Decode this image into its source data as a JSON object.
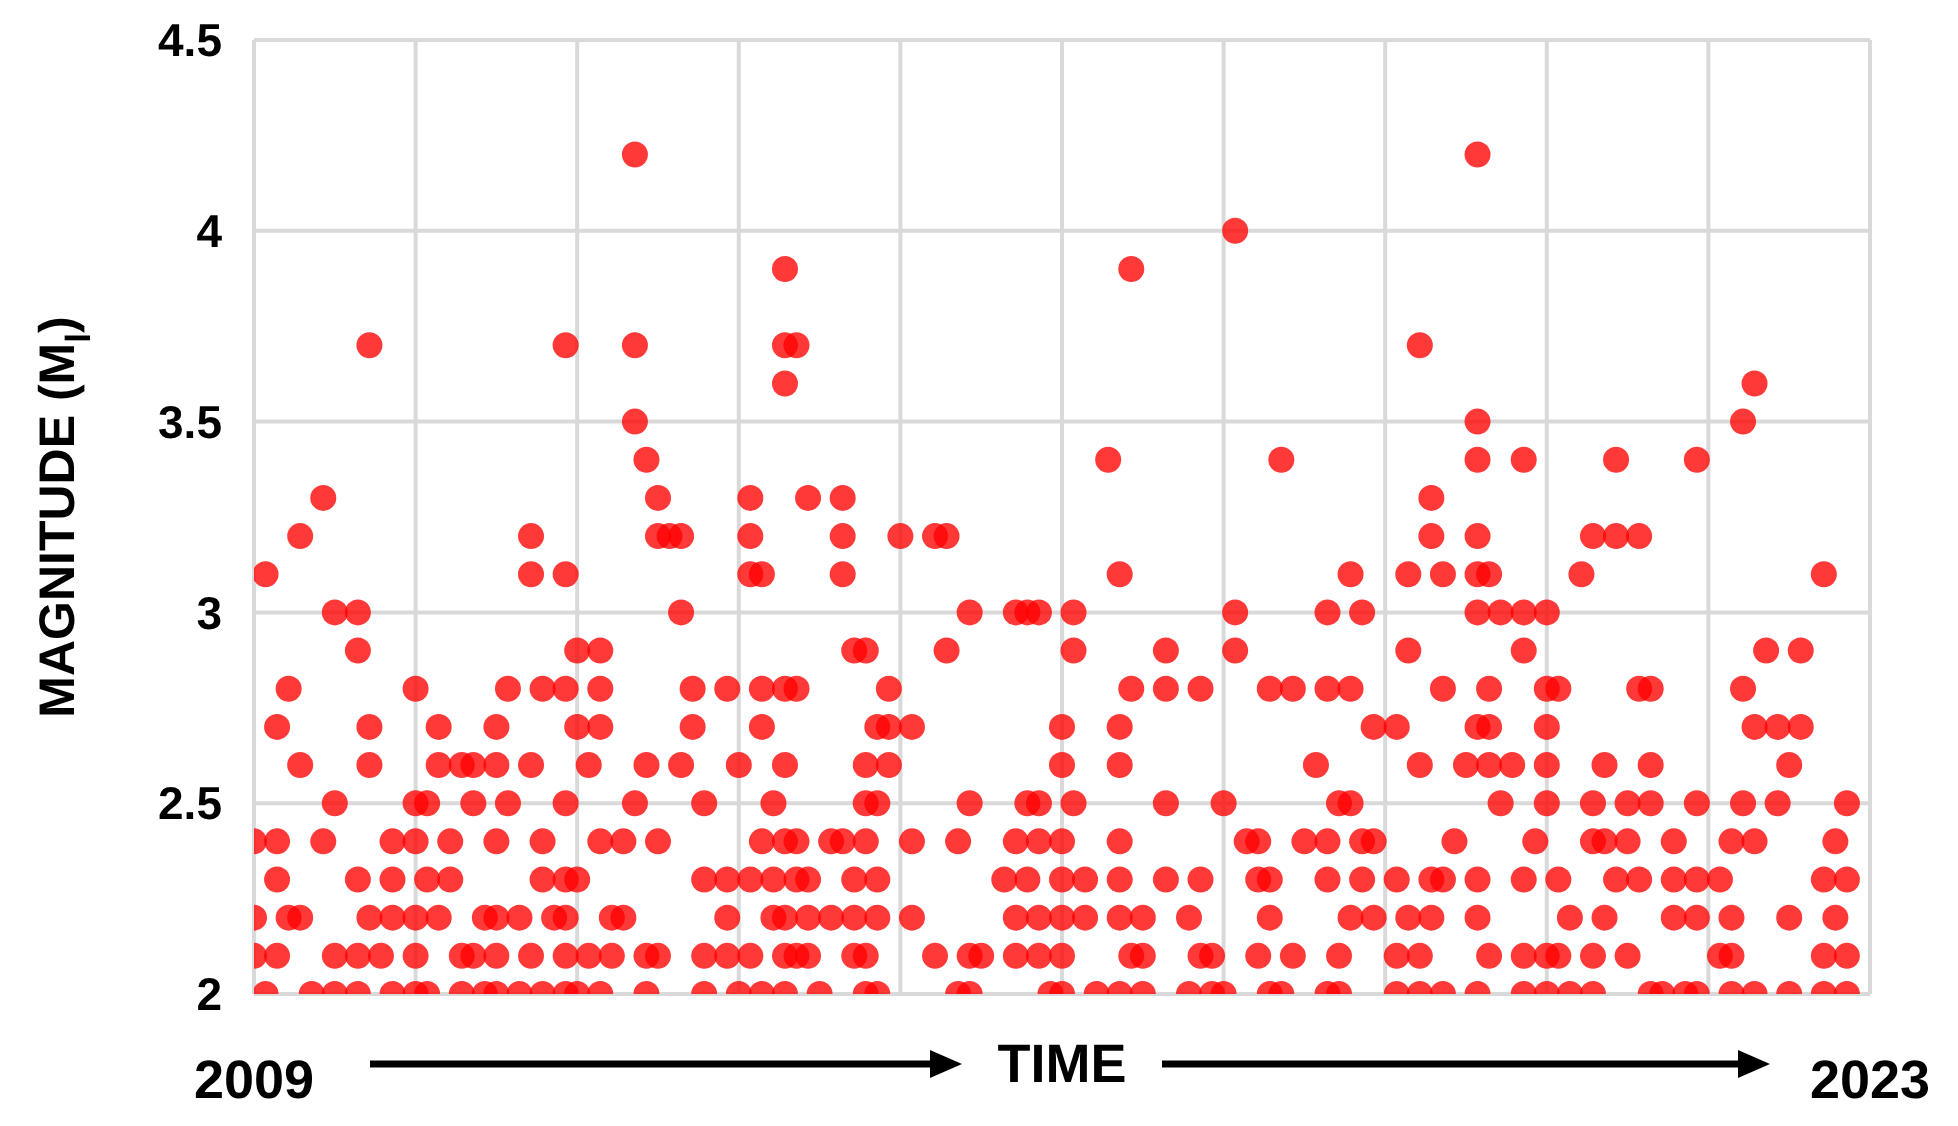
{
  "chart_data": {
    "type": "scatter",
    "xlabel": "TIME",
    "ylabel": "MAGNITUDE (M$_{l}$)",
    "xlim": [
      2009,
      2023
    ],
    "xticks": [
      {
        "value": 2009,
        "label": "2009"
      },
      {
        "value": 2010.4,
        "label": null
      },
      {
        "value": 2011.8,
        "label": null
      },
      {
        "value": 2013.2,
        "label": null
      },
      {
        "value": 2014.6,
        "label": null
      },
      {
        "value": 2016.0,
        "label": null
      },
      {
        "value": 2017.4,
        "label": null
      },
      {
        "value": 2018.8,
        "label": null
      },
      {
        "value": 2020.2,
        "label": null
      },
      {
        "value": 2021.6,
        "label": null
      },
      {
        "value": 2023,
        "label": "2023"
      }
    ],
    "ylim": [
      2,
      4.5
    ],
    "yticks": [
      2,
      2.5,
      3,
      3.5,
      4,
      4.5
    ],
    "grid": true,
    "marker": "circle",
    "x": [
      2012.3,
      2019.6,
      2017.5,
      2013.6,
      2016.6,
      2010.0,
      2011.7,
      2012.3,
      2013.6,
      2013.7,
      2019.1,
      2013.6,
      2022.0,
      2012.3,
      2019.6,
      2021.9,
      2012.4,
      2016.4,
      2017.9,
      2019.6,
      2020.0,
      2020.8,
      2021.5,
      2009.6,
      2012.5,
      2013.3,
      2013.8,
      2014.1,
      2019.2,
      2009.4,
      2011.4,
      2012.5,
      2012.6,
      2012.7,
      2013.3,
      2014.1,
      2014.6,
      2014.9,
      2015.0,
      2019.2,
      2019.6,
      2020.6,
      2020.8,
      2021.0,
      2009.1,
      2011.4,
      2011.7,
      2013.3,
      2013.4,
      2014.1,
      2016.5,
      2018.5,
      2019.0,
      2019.3,
      2019.6,
      2019.7,
      2020.5,
      2022.6,
      2009.7,
      2009.9,
      2012.7,
      2015.2,
      2015.6,
      2015.7,
      2015.8,
      2016.1,
      2017.5,
      2018.3,
      2018.6,
      2019.6,
      2019.8,
      2020.0,
      2020.2,
      2009.9,
      2011.8,
      2012.0,
      2014.2,
      2014.3,
      2015.0,
      2016.1,
      2016.9,
      2017.5,
      2019.0,
      2020.0,
      2022.1,
      2022.4,
      2009.3,
      2010.4,
      2011.2,
      2011.5,
      2011.7,
      2012.0,
      2012.8,
      2013.1,
      2013.4,
      2013.6,
      2013.7,
      2014.5,
      2016.6,
      2016.9,
      2017.2,
      2017.8,
      2018.0,
      2018.3,
      2018.5,
      2019.3,
      2019.7,
      2020.2,
      2020.3,
      2021.0,
      2021.1,
      2021.9,
      2009.2,
      2010.0,
      2010.6,
      2011.1,
      2011.8,
      2012.0,
      2012.8,
      2013.4,
      2014.4,
      2014.5,
      2014.7,
      2016.0,
      2016.5,
      2018.7,
      2018.9,
      2019.6,
      2019.7,
      2020.2,
      2022.0,
      2022.2,
      2022.4,
      2009.4,
      2010.0,
      2010.6,
      2010.8,
      2010.9,
      2011.1,
      2011.4,
      2011.9,
      2012.4,
      2012.7,
      2013.2,
      2013.6,
      2014.3,
      2014.5,
      2016.0,
      2016.5,
      2018.2,
      2019.1,
      2019.5,
      2019.7,
      2019.9,
      2020.2,
      2020.7,
      2021.1,
      2022.3,
      2009.7,
      2010.4,
      2010.5,
      2010.9,
      2011.2,
      2011.7,
      2012.3,
      2012.9,
      2013.5,
      2014.3,
      2014.4,
      2015.2,
      2015.7,
      2015.8,
      2016.1,
      2016.9,
      2017.4,
      2018.4,
      2018.5,
      2019.8,
      2020.2,
      2020.6,
      2020.9,
      2021.1,
      2021.5,
      2021.9,
      2022.2,
      2022.8,
      2009.0,
      2009.2,
      2009.6,
      2010.2,
      2010.4,
      2010.7,
      2011.1,
      2011.5,
      2012.0,
      2012.2,
      2012.5,
      2013.4,
      2013.6,
      2013.7,
      2014.0,
      2014.1,
      2014.3,
      2014.7,
      2015.1,
      2015.6,
      2015.8,
      2016.0,
      2016.5,
      2017.6,
      2017.7,
      2018.1,
      2018.3,
      2018.6,
      2018.7,
      2019.4,
      2020.1,
      2020.6,
      2020.7,
      2020.9,
      2021.3,
      2021.8,
      2022.0,
      2022.7,
      2009.2,
      2009.9,
      2010.2,
      2010.5,
      2010.7,
      2011.5,
      2011.7,
      2011.8,
      2012.9,
      2013.1,
      2013.3,
      2013.5,
      2013.7,
      2013.8,
      2014.2,
      2014.4,
      2015.5,
      2015.7,
      2016.0,
      2016.2,
      2016.5,
      2016.9,
      2017.2,
      2017.7,
      2017.8,
      2018.3,
      2018.6,
      2018.9,
      2019.2,
      2019.3,
      2019.6,
      2020.0,
      2020.3,
      2020.8,
      2021.0,
      2021.3,
      2021.5,
      2021.7,
      2022.6,
      2022.8,
      2009.0,
      2009.3,
      2009.4,
      2010.0,
      2010.2,
      2010.4,
      2010.6,
      2011.0,
      2011.1,
      2011.3,
      2011.6,
      2011.7,
      2012.1,
      2012.2,
      2013.1,
      2013.5,
      2013.6,
      2013.8,
      2014.0,
      2014.2,
      2014.4,
      2014.7,
      2015.6,
      2015.8,
      2016.0,
      2016.2,
      2016.5,
      2016.7,
      2017.1,
      2017.8,
      2018.5,
      2018.7,
      2019.0,
      2019.2,
      2019.6,
      2020.4,
      2020.7,
      2021.3,
      2021.5,
      2021.8,
      2022.3,
      2022.7,
      2009.0,
      2009.2,
      2009.7,
      2009.9,
      2010.1,
      2010.4,
      2010.8,
      2010.9,
      2011.1,
      2011.4,
      2011.7,
      2011.9,
      2012.1,
      2012.4,
      2012.5,
      2012.9,
      2013.1,
      2013.3,
      2013.6,
      2013.7,
      2013.8,
      2014.2,
      2014.3,
      2014.9,
      2015.2,
      2015.3,
      2015.6,
      2015.8,
      2016.0,
      2016.6,
      2016.7,
      2017.2,
      2017.3,
      2017.7,
      2018.0,
      2018.4,
      2018.9,
      2019.1,
      2019.7,
      2020.0,
      2020.2,
      2020.3,
      2020.6,
      2020.9,
      2021.7,
      2021.8,
      2022.6,
      2022.8,
      2009.1,
      2009.5,
      2009.7,
      2009.9,
      2010.2,
      2010.4,
      2010.5,
      2010.8,
      2011.0,
      2011.1,
      2011.3,
      2011.5,
      2011.7,
      2011.8,
      2012.0,
      2012.4,
      2012.9,
      2013.2,
      2013.4,
      2013.6,
      2013.9,
      2014.3,
      2014.4,
      2015.1,
      2015.2,
      2015.9,
      2016.0,
      2016.3,
      2016.5,
      2016.7,
      2017.1,
      2017.3,
      2017.4,
      2017.8,
      2017.9,
      2018.3,
      2018.4,
      2018.9,
      2019.1,
      2019.3,
      2019.6,
      2020.0,
      2020.2,
      2020.4,
      2020.6,
      2021.1,
      2021.2,
      2021.4,
      2021.5,
      2021.8,
      2022.0,
      2022.3,
      2022.6,
      2022.8
    ],
    "series": [
      {
        "color": "#ff0000",
        "values": [
          4.2,
          4.2,
          4.0,
          3.9,
          3.9,
          3.7,
          3.7,
          3.7,
          3.7,
          3.7,
          3.7,
          3.6,
          3.6,
          3.5,
          3.5,
          3.5,
          3.4,
          3.4,
          3.4,
          3.4,
          3.4,
          3.4,
          3.4,
          3.3,
          3.3,
          3.3,
          3.3,
          3.3,
          3.3,
          3.2,
          3.2,
          3.2,
          3.2,
          3.2,
          3.2,
          3.2,
          3.2,
          3.2,
          3.2,
          3.2,
          3.2,
          3.2,
          3.2,
          3.2,
          3.1,
          3.1,
          3.1,
          3.1,
          3.1,
          3.1,
          3.1,
          3.1,
          3.1,
          3.1,
          3.1,
          3.1,
          3.1,
          3.1,
          3.0,
          3.0,
          3.0,
          3.0,
          3.0,
          3.0,
          3.0,
          3.0,
          3.0,
          3.0,
          3.0,
          3.0,
          3.0,
          3.0,
          3.0,
          2.9,
          2.9,
          2.9,
          2.9,
          2.9,
          2.9,
          2.9,
          2.9,
          2.9,
          2.9,
          2.9,
          2.9,
          2.9,
          2.8,
          2.8,
          2.8,
          2.8,
          2.8,
          2.8,
          2.8,
          2.8,
          2.8,
          2.8,
          2.8,
          2.8,
          2.8,
          2.8,
          2.8,
          2.8,
          2.8,
          2.8,
          2.8,
          2.8,
          2.8,
          2.8,
          2.8,
          2.8,
          2.8,
          2.8,
          2.7,
          2.7,
          2.7,
          2.7,
          2.7,
          2.7,
          2.7,
          2.7,
          2.7,
          2.7,
          2.7,
          2.7,
          2.7,
          2.7,
          2.7,
          2.7,
          2.7,
          2.7,
          2.7,
          2.7,
          2.7,
          2.6,
          2.6,
          2.6,
          2.6,
          2.6,
          2.6,
          2.6,
          2.6,
          2.6,
          2.6,
          2.6,
          2.6,
          2.6,
          2.6,
          2.6,
          2.6,
          2.6,
          2.6,
          2.6,
          2.6,
          2.6,
          2.6,
          2.6,
          2.6,
          2.6,
          2.5,
          2.5,
          2.5,
          2.5,
          2.5,
          2.5,
          2.5,
          2.5,
          2.5,
          2.5,
          2.5,
          2.5,
          2.5,
          2.5,
          2.5,
          2.5,
          2.5,
          2.5,
          2.5,
          2.5,
          2.5,
          2.5,
          2.5,
          2.5,
          2.5,
          2.5,
          2.5,
          2.5,
          2.4,
          2.4,
          2.4,
          2.4,
          2.4,
          2.4,
          2.4,
          2.4,
          2.4,
          2.4,
          2.4,
          2.4,
          2.4,
          2.4,
          2.4,
          2.4,
          2.4,
          2.4,
          2.4,
          2.4,
          2.4,
          2.4,
          2.4,
          2.4,
          2.4,
          2.4,
          2.4,
          2.4,
          2.4,
          2.4,
          2.4,
          2.4,
          2.4,
          2.4,
          2.4,
          2.4,
          2.4,
          2.4,
          2.3,
          2.3,
          2.3,
          2.3,
          2.3,
          2.3,
          2.3,
          2.3,
          2.3,
          2.3,
          2.3,
          2.3,
          2.3,
          2.3,
          2.3,
          2.3,
          2.3,
          2.3,
          2.3,
          2.3,
          2.3,
          2.3,
          2.3,
          2.3,
          2.3,
          2.3,
          2.3,
          2.3,
          2.3,
          2.3,
          2.3,
          2.3,
          2.3,
          2.3,
          2.3,
          2.3,
          2.3,
          2.3,
          2.3,
          2.3,
          2.2,
          2.2,
          2.2,
          2.2,
          2.2,
          2.2,
          2.2,
          2.2,
          2.2,
          2.2,
          2.2,
          2.2,
          2.2,
          2.2,
          2.2,
          2.2,
          2.2,
          2.2,
          2.2,
          2.2,
          2.2,
          2.2,
          2.2,
          2.2,
          2.2,
          2.2,
          2.2,
          2.2,
          2.2,
          2.2,
          2.2,
          2.2,
          2.2,
          2.2,
          2.2,
          2.2,
          2.2,
          2.2,
          2.2,
          2.2,
          2.2,
          2.2,
          2.1,
          2.1,
          2.1,
          2.1,
          2.1,
          2.1,
          2.1,
          2.1,
          2.1,
          2.1,
          2.1,
          2.1,
          2.1,
          2.1,
          2.1,
          2.1,
          2.1,
          2.1,
          2.1,
          2.1,
          2.1,
          2.1,
          2.1,
          2.1,
          2.1,
          2.1,
          2.1,
          2.1,
          2.1,
          2.1,
          2.1,
          2.1,
          2.1,
          2.1,
          2.1,
          2.1,
          2.1,
          2.1,
          2.1,
          2.1,
          2.1,
          2.1,
          2.1,
          2.1,
          2.1,
          2.1,
          2.1,
          2.1,
          2.0,
          2.0,
          2.0,
          2.0,
          2.0,
          2.0,
          2.0,
          2.0,
          2.0,
          2.0,
          2.0,
          2.0,
          2.0,
          2.0,
          2.0,
          2.0,
          2.0,
          2.0,
          2.0,
          2.0,
          2.0,
          2.0,
          2.0,
          2.0,
          2.0,
          2.0,
          2.0,
          2.0,
          2.0,
          2.0,
          2.0,
          2.0,
          2.0,
          2.0,
          2.0,
          2.0,
          2.0,
          2.0,
          2.0,
          2.0,
          2.0,
          2.0,
          2.0,
          2.0,
          2.0,
          2.0,
          2.0,
          2.0,
          2.0,
          2.0,
          2.0,
          2.0,
          2.0,
          2.0
        ]
      }
    ]
  }
}
